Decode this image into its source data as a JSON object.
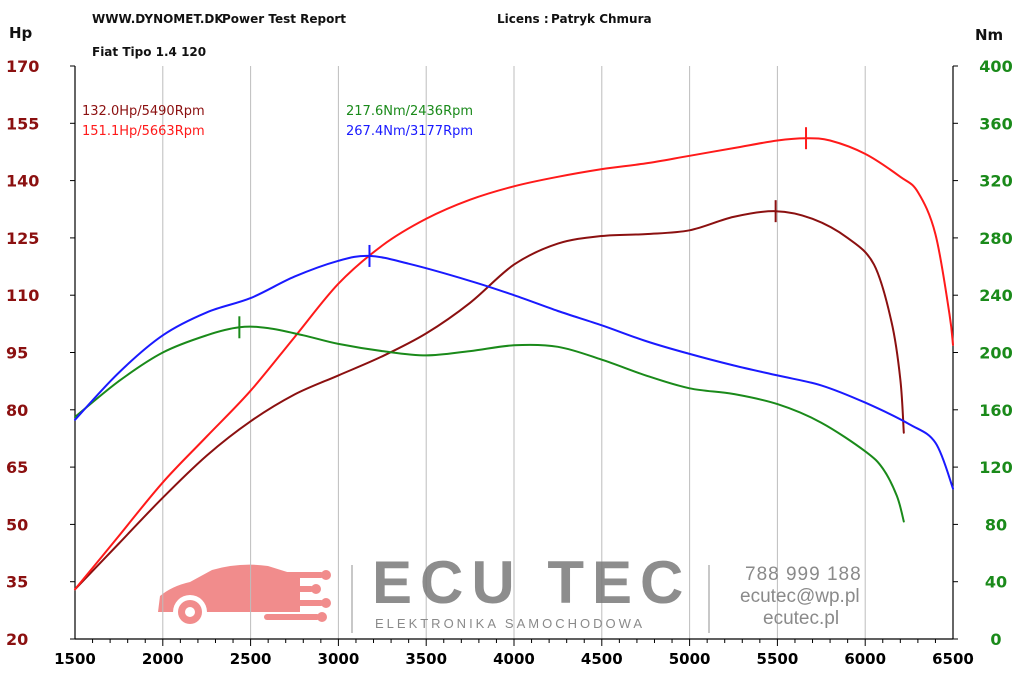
{
  "header": {
    "site": "WWW.DYNOMET.DK",
    "report": "Power Test Report",
    "licence_label": "Licens :",
    "licence_name": "Patryk Chmura",
    "vehicle": "Fiat Tipo 1.4 120"
  },
  "peaks": {
    "hp_stock": "132.0Hp/5490Rpm",
    "hp_tuned": "151.1Hp/5663Rpm",
    "nm_stock": "217.6Nm/2436Rpm",
    "nm_tuned": "267.4Nm/3177Rpm"
  },
  "watermark": {
    "brand": "ECU TEC",
    "tagline": "ELEKTRONIKA SAMOCHODOWA",
    "phone": "788 999 188",
    "email": "ecutec@wp.pl",
    "website": "ecutec.pl"
  },
  "colors": {
    "hp_stock": "#8b1010",
    "hp_tuned": "#ff1a1a",
    "nm_stock": "#1a8a1a",
    "nm_tuned": "#1a1aff",
    "left_axis": "#8b1010",
    "right_axis": "#1a8a1a",
    "grid": "#bdbdbd"
  },
  "chart_data": {
    "type": "line",
    "ylabel_left": "Hp",
    "ylabel_right": "Nm",
    "xlim": [
      1500,
      6500
    ],
    "ylim_left": [
      20,
      170
    ],
    "ylim_right": [
      0,
      400
    ],
    "x_ticks": [
      1500,
      2000,
      2500,
      3000,
      3500,
      4000,
      4500,
      5000,
      5500,
      6000,
      6500
    ],
    "y_ticks_left": [
      20,
      35,
      50,
      65,
      80,
      95,
      110,
      125,
      140,
      155,
      170
    ],
    "y_ticks_right": [
      0,
      40,
      80,
      120,
      160,
      200,
      240,
      280,
      320,
      360,
      400
    ],
    "grid": "vertical",
    "series": [
      {
        "name": "132.0Hp/5490Rpm",
        "axis": "left",
        "peak": [
          5490,
          132.0
        ],
        "points": [
          [
            1500,
            33
          ],
          [
            1750,
            45
          ],
          [
            2000,
            57
          ],
          [
            2250,
            68
          ],
          [
            2500,
            77
          ],
          [
            2750,
            84
          ],
          [
            3000,
            89
          ],
          [
            3250,
            94
          ],
          [
            3500,
            100
          ],
          [
            3750,
            108
          ],
          [
            4000,
            118
          ],
          [
            4250,
            123.5
          ],
          [
            4500,
            125.5
          ],
          [
            4750,
            126
          ],
          [
            5000,
            127
          ],
          [
            5250,
            130.5
          ],
          [
            5490,
            132
          ],
          [
            5700,
            130
          ],
          [
            5900,
            125
          ],
          [
            6050,
            118
          ],
          [
            6150,
            103
          ],
          [
            6200,
            88
          ],
          [
            6220,
            74
          ]
        ]
      },
      {
        "name": "151.1Hp/5663Rpm",
        "axis": "left",
        "peak": [
          5663,
          151.1
        ],
        "points": [
          [
            1500,
            33
          ],
          [
            1750,
            47
          ],
          [
            2000,
            61
          ],
          [
            2250,
            73
          ],
          [
            2500,
            85
          ],
          [
            2750,
            99
          ],
          [
            3000,
            113
          ],
          [
            3250,
            123
          ],
          [
            3500,
            130
          ],
          [
            3750,
            135
          ],
          [
            4000,
            138.5
          ],
          [
            4250,
            141
          ],
          [
            4500,
            143
          ],
          [
            4750,
            144.5
          ],
          [
            5000,
            146.5
          ],
          [
            5250,
            148.5
          ],
          [
            5500,
            150.5
          ],
          [
            5663,
            151.1
          ],
          [
            5800,
            150.5
          ],
          [
            6000,
            147
          ],
          [
            6200,
            141
          ],
          [
            6300,
            137
          ],
          [
            6400,
            126
          ],
          [
            6480,
            105
          ],
          [
            6500,
            97
          ]
        ]
      },
      {
        "name": "217.6Nm/2436Rpm",
        "axis": "right",
        "peak": [
          2436,
          217.6
        ],
        "points": [
          [
            1500,
            155
          ],
          [
            1750,
            180
          ],
          [
            2000,
            200
          ],
          [
            2250,
            212
          ],
          [
            2436,
            217.6
          ],
          [
            2600,
            217
          ],
          [
            2800,
            212
          ],
          [
            3000,
            206
          ],
          [
            3250,
            201
          ],
          [
            3500,
            198
          ],
          [
            3750,
            201
          ],
          [
            4000,
            205
          ],
          [
            4250,
            204
          ],
          [
            4500,
            195
          ],
          [
            4750,
            184
          ],
          [
            5000,
            175
          ],
          [
            5250,
            171
          ],
          [
            5500,
            164
          ],
          [
            5750,
            151
          ],
          [
            6000,
            131
          ],
          [
            6100,
            119
          ],
          [
            6180,
            100
          ],
          [
            6220,
            82
          ]
        ]
      },
      {
        "name": "267.4Nm/3177Rpm",
        "axis": "right",
        "peak": [
          3177,
          267.4
        ],
        "points": [
          [
            1500,
            153
          ],
          [
            1750,
            186
          ],
          [
            2000,
            212
          ],
          [
            2250,
            228
          ],
          [
            2500,
            238
          ],
          [
            2750,
            253
          ],
          [
            3000,
            264
          ],
          [
            3177,
            267.4
          ],
          [
            3400,
            262
          ],
          [
            3750,
            250
          ],
          [
            4000,
            240
          ],
          [
            4250,
            229
          ],
          [
            4500,
            219
          ],
          [
            4750,
            208
          ],
          [
            5000,
            199
          ],
          [
            5250,
            191
          ],
          [
            5500,
            184
          ],
          [
            5750,
            177
          ],
          [
            6000,
            165
          ],
          [
            6250,
            150
          ],
          [
            6400,
            137
          ],
          [
            6500,
            105
          ]
        ]
      }
    ]
  }
}
